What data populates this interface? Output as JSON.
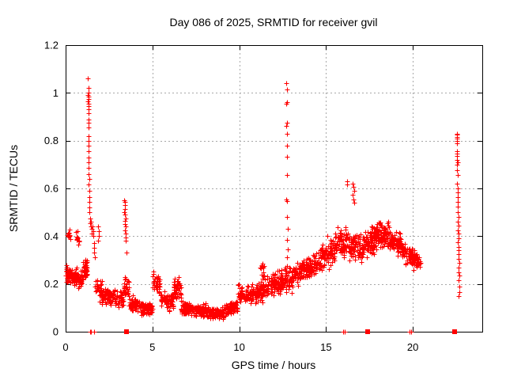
{
  "chart_data": {
    "type": "scatter",
    "title": "Day 086 of 2025, SRMTID for receiver gvil",
    "xlabel": "GPS time / hours",
    "ylabel": "SRMTID / TECUs",
    "xlim": [
      0,
      24
    ],
    "ylim": [
      0,
      1.2
    ],
    "xticks": [
      0,
      5,
      10,
      15,
      20
    ],
    "xtick_labels": [
      "0",
      "5",
      "10",
      "15",
      "20"
    ],
    "yticks": [
      0,
      0.2,
      0.4,
      0.6,
      0.8,
      1.0,
      1.2
    ],
    "ytick_labels": [
      "0",
      "0.2",
      "0.4",
      "0.6",
      "0.8",
      "1",
      "1.2"
    ],
    "grid": true,
    "legend": "none",
    "marker": "plus",
    "marker_color": "#ff0000",
    "grid_color": "#a8a8a8",
    "border_color": "#000000",
    "seed": 1337,
    "points": [
      [
        1.29,
        1.06
      ],
      [
        1.3,
        1.02
      ],
      [
        1.31,
        1.0
      ],
      [
        1.29,
        0.99
      ],
      [
        1.32,
        0.985
      ],
      [
        1.3,
        0.975
      ],
      [
        1.28,
        0.965
      ],
      [
        1.31,
        0.955
      ],
      [
        1.33,
        0.945
      ],
      [
        1.3,
        0.93
      ],
      [
        1.31,
        0.915
      ],
      [
        1.3,
        0.89
      ],
      [
        1.32,
        0.875
      ],
      [
        1.33,
        0.855
      ],
      [
        1.31,
        0.82
      ],
      [
        1.3,
        0.8
      ],
      [
        1.32,
        0.78
      ],
      [
        1.31,
        0.755
      ],
      [
        1.33,
        0.73
      ],
      [
        1.32,
        0.71
      ],
      [
        1.34,
        0.685
      ],
      [
        1.33,
        0.66
      ],
      [
        1.35,
        0.64
      ],
      [
        1.34,
        0.615
      ],
      [
        1.36,
        0.59
      ],
      [
        1.35,
        0.565
      ],
      [
        1.37,
        0.545
      ],
      [
        1.36,
        0.52
      ],
      [
        1.38,
        0.5
      ],
      [
        1.4,
        0.475
      ],
      [
        1.42,
        0.455
      ],
      [
        1.45,
        0.44
      ],
      [
        1.47,
        0.46
      ],
      [
        1.5,
        0.43
      ],
      [
        1.52,
        0.41
      ],
      [
        1.55,
        0.44
      ],
      [
        1.58,
        0.42
      ],
      [
        1.6,
        0.4
      ],
      [
        1.62,
        0.37
      ],
      [
        1.64,
        0.35
      ],
      [
        1.66,
        0.33
      ],
      [
        1.7,
        0.31
      ],
      [
        1.86,
        0.44
      ],
      [
        1.9,
        0.42
      ],
      [
        1.93,
        0.4
      ],
      [
        1.88,
        0.38
      ],
      [
        3.38,
        0.55
      ],
      [
        3.41,
        0.545
      ],
      [
        3.4,
        0.53
      ],
      [
        3.43,
        0.515
      ],
      [
        3.39,
        0.5
      ],
      [
        3.42,
        0.49
      ],
      [
        3.44,
        0.475
      ],
      [
        3.41,
        0.465
      ],
      [
        3.43,
        0.45
      ],
      [
        3.45,
        0.44
      ],
      [
        3.42,
        0.425
      ],
      [
        3.46,
        0.41
      ],
      [
        3.44,
        0.395
      ],
      [
        3.47,
        0.38
      ],
      [
        3.49,
        0.33
      ],
      [
        12.72,
        1.04
      ],
      [
        12.74,
        1.015
      ],
      [
        12.73,
        0.96
      ],
      [
        12.71,
        0.955
      ],
      [
        12.75,
        0.875
      ],
      [
        12.72,
        0.862
      ],
      [
        12.74,
        0.828
      ],
      [
        12.73,
        0.78
      ],
      [
        12.76,
        0.732
      ],
      [
        12.74,
        0.658
      ],
      [
        12.72,
        0.555
      ],
      [
        12.77,
        0.548
      ],
      [
        12.75,
        0.48
      ],
      [
        12.78,
        0.43
      ],
      [
        12.76,
        0.385
      ],
      [
        12.79,
        0.345
      ],
      [
        12.74,
        0.31
      ],
      [
        12.77,
        0.275
      ],
      [
        16.2,
        0.63
      ],
      [
        16.22,
        0.615
      ],
      [
        16.55,
        0.62
      ],
      [
        16.57,
        0.605
      ],
      [
        16.6,
        0.59
      ],
      [
        16.52,
        0.575
      ],
      [
        16.58,
        0.555
      ],
      [
        16.62,
        0.54
      ],
      [
        22.52,
        0.83
      ],
      [
        22.55,
        0.825
      ],
      [
        22.53,
        0.815
      ],
      [
        22.56,
        0.81
      ],
      [
        22.54,
        0.8
      ],
      [
        22.52,
        0.79
      ],
      [
        22.55,
        0.755
      ],
      [
        22.53,
        0.745
      ],
      [
        22.56,
        0.735
      ],
      [
        22.54,
        0.72
      ],
      [
        22.57,
        0.71
      ],
      [
        22.55,
        0.7
      ],
      [
        22.53,
        0.675
      ],
      [
        22.58,
        0.655
      ],
      [
        22.56,
        0.62
      ],
      [
        22.59,
        0.6
      ],
      [
        22.57,
        0.585
      ],
      [
        22.6,
        0.565
      ],
      [
        22.58,
        0.545
      ],
      [
        22.61,
        0.525
      ],
      [
        22.59,
        0.5
      ],
      [
        22.62,
        0.48
      ],
      [
        22.6,
        0.46
      ],
      [
        22.63,
        0.445
      ],
      [
        22.61,
        0.425
      ],
      [
        22.64,
        0.41
      ],
      [
        22.62,
        0.39
      ],
      [
        22.6,
        0.375
      ],
      [
        22.63,
        0.355
      ],
      [
        22.65,
        0.34
      ],
      [
        22.62,
        0.325
      ],
      [
        22.64,
        0.305
      ],
      [
        22.66,
        0.29
      ],
      [
        22.63,
        0.27
      ],
      [
        22.65,
        0.25
      ],
      [
        22.67,
        0.235
      ],
      [
        22.64,
        0.215
      ],
      [
        22.66,
        0.19
      ],
      [
        22.68,
        0.165
      ],
      [
        22.65,
        0.15
      ]
    ],
    "band_segments": [
      [
        0.0,
        0.35,
        0.25,
        0.24,
        0.06,
        45
      ],
      [
        0.0,
        0.3,
        0.42,
        0.4,
        0.04,
        10
      ],
      [
        0.35,
        0.95,
        0.23,
        0.22,
        0.05,
        70
      ],
      [
        0.55,
        0.8,
        0.38,
        0.4,
        0.05,
        10
      ],
      [
        0.95,
        1.25,
        0.25,
        0.27,
        0.06,
        40
      ],
      [
        1.7,
        2.1,
        0.2,
        0.16,
        0.06,
        35
      ],
      [
        2.1,
        3.35,
        0.15,
        0.14,
        0.05,
        110
      ],
      [
        3.35,
        3.65,
        0.2,
        0.18,
        0.06,
        25
      ],
      [
        3.65,
        4.25,
        0.13,
        0.11,
        0.05,
        60
      ],
      [
        4.25,
        5.0,
        0.1,
        0.1,
        0.04,
        85
      ],
      [
        5.0,
        5.45,
        0.22,
        0.2,
        0.07,
        45
      ],
      [
        5.45,
        6.2,
        0.15,
        0.12,
        0.05,
        65
      ],
      [
        6.2,
        6.65,
        0.2,
        0.18,
        0.07,
        45
      ],
      [
        6.65,
        7.4,
        0.1,
        0.09,
        0.04,
        80
      ],
      [
        7.4,
        8.2,
        0.09,
        0.09,
        0.035,
        95
      ],
      [
        8.2,
        9.1,
        0.08,
        0.08,
        0.035,
        100
      ],
      [
        9.1,
        9.9,
        0.09,
        0.11,
        0.04,
        80
      ],
      [
        9.9,
        10.9,
        0.16,
        0.16,
        0.05,
        80
      ],
      [
        10.9,
        11.6,
        0.16,
        0.18,
        0.06,
        70
      ],
      [
        11.2,
        11.45,
        0.27,
        0.25,
        0.04,
        12
      ],
      [
        11.6,
        12.4,
        0.19,
        0.21,
        0.07,
        80
      ],
      [
        12.4,
        13.1,
        0.21,
        0.23,
        0.07,
        70
      ],
      [
        13.1,
        13.9,
        0.24,
        0.26,
        0.06,
        80
      ],
      [
        13.9,
        14.7,
        0.27,
        0.3,
        0.07,
        80
      ],
      [
        14.7,
        15.5,
        0.32,
        0.35,
        0.08,
        80
      ],
      [
        15.5,
        16.3,
        0.37,
        0.38,
        0.09,
        80
      ],
      [
        16.3,
        17.1,
        0.36,
        0.35,
        0.08,
        80
      ],
      [
        17.1,
        17.9,
        0.37,
        0.39,
        0.08,
        90
      ],
      [
        17.9,
        18.7,
        0.41,
        0.4,
        0.07,
        95
      ],
      [
        18.7,
        19.4,
        0.38,
        0.36,
        0.07,
        85
      ],
      [
        19.4,
        20.05,
        0.34,
        0.31,
        0.06,
        75
      ],
      [
        20.05,
        20.45,
        0.31,
        0.29,
        0.05,
        35
      ]
    ],
    "baseline_plus_markers": [
      [
        1.4,
        0
      ],
      [
        1.46,
        0
      ],
      [
        1.62,
        0
      ],
      [
        15.98,
        0
      ],
      [
        16.06,
        0
      ],
      [
        19.82,
        0
      ],
      [
        19.9,
        0
      ]
    ],
    "baseline_square_markers": [
      [
        3.5,
        0
      ],
      [
        17.4,
        0
      ],
      [
        22.42,
        0
      ]
    ]
  }
}
